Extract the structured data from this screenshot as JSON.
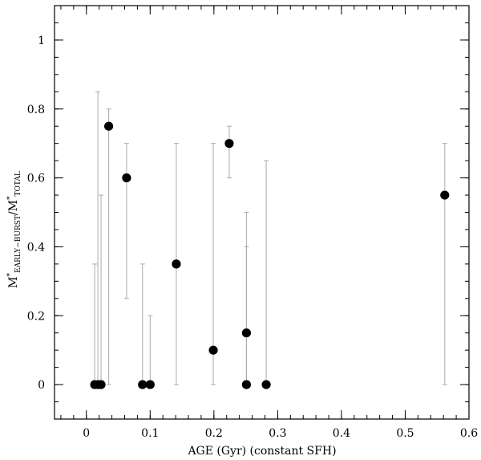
{
  "chart_data": {
    "type": "scatter",
    "xlabel": "AGE (Gyr) (constant SFH)",
    "ylabel": {
      "main": "M",
      "sup": "*",
      "sub1": "EARLY−BURST",
      "slash": "/M",
      "sup2": "*",
      "sub2": "TOTAL"
    },
    "xlim": [
      -0.05,
      0.6
    ],
    "ylim": [
      -0.1,
      1.1
    ],
    "x_ticks": [
      {
        "value": 0,
        "label": "0"
      },
      {
        "value": 0.1,
        "label": "0.1"
      },
      {
        "value": 0.2,
        "label": "0.2"
      },
      {
        "value": 0.3,
        "label": "0.3"
      },
      {
        "value": 0.4,
        "label": "0.4"
      },
      {
        "value": 0.5,
        "label": "0.5"
      },
      {
        "value": 0.6,
        "label": "0.6"
      }
    ],
    "x_minor_step": 0.02,
    "y_ticks": [
      {
        "value": 0,
        "label": "0"
      },
      {
        "value": 0.2,
        "label": "0.2"
      },
      {
        "value": 0.4,
        "label": "0.4"
      },
      {
        "value": 0.6,
        "label": "0.6"
      },
      {
        "value": 0.8,
        "label": "0.8"
      },
      {
        "value": 1,
        "label": "1"
      }
    ],
    "y_minor_step": 0.05,
    "grid": false,
    "points": [
      {
        "x": 0.013,
        "y": 0.0,
        "err_low": 0.0,
        "err_high": 0.35
      },
      {
        "x": 0.018,
        "y": 0.0,
        "err_low": 0.0,
        "err_high": 0.85
      },
      {
        "x": 0.023,
        "y": 0.0,
        "err_low": 0.0,
        "err_high": 0.55
      },
      {
        "x": 0.035,
        "y": 0.75,
        "err_low": 0.0,
        "err_high": 0.8
      },
      {
        "x": 0.063,
        "y": 0.6,
        "err_low": 0.25,
        "err_high": 0.7
      },
      {
        "x": 0.088,
        "y": 0.0,
        "err_low": 0.0,
        "err_high": 0.35
      },
      {
        "x": 0.1,
        "y": 0.0,
        "err_low": 0.0,
        "err_high": 0.2
      },
      {
        "x": 0.141,
        "y": 0.35,
        "err_low": 0.0,
        "err_high": 0.7
      },
      {
        "x": 0.199,
        "y": 0.1,
        "err_low": 0.0,
        "err_high": 0.7
      },
      {
        "x": 0.224,
        "y": 0.7,
        "err_low": 0.6,
        "err_high": 0.75
      },
      {
        "x": 0.251,
        "y": 0.15,
        "err_low": 0.0,
        "err_high": 0.5
      },
      {
        "x": 0.251,
        "y": 0.0,
        "err_low": 0.0,
        "err_high": 0.4
      },
      {
        "x": 0.282,
        "y": 0.0,
        "err_low": 0.0,
        "err_high": 0.65
      },
      {
        "x": 0.562,
        "y": 0.55,
        "err_low": 0.0,
        "err_high": 0.7
      }
    ],
    "colors": {
      "marker": "#000000",
      "errorbar": "#aaaaaa",
      "axes": "#000000"
    }
  }
}
